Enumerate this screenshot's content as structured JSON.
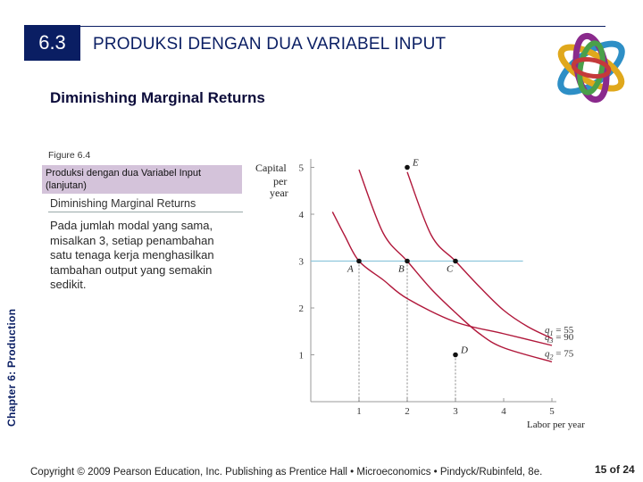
{
  "header": {
    "section_number": "6.3",
    "title": "PRODUKSI DENGAN DUA VARIABEL INPUT"
  },
  "subtitle": "Diminishing Marginal Returns",
  "side_label": "Chapter 6:  Production",
  "figure": {
    "number_label": "Figure 6.4",
    "caption": "Produksi dengan dua Variabel Input (lanjutan)",
    "heading": "Diminishing Marginal Returns",
    "body": "Pada jumlah modal yang sama, misalkan 3, setiap penambahan satu tenaga kerja menghasilkan tambahan output yang semakin sedikit."
  },
  "chart_data": {
    "type": "line",
    "ylabel_lines": [
      "Capital",
      "per",
      "year"
    ],
    "xlabel": "Labor per year",
    "x_ticks": [
      "1",
      "2",
      "3",
      "4",
      "5"
    ],
    "y_ticks": [
      "1",
      "2",
      "3",
      "4",
      "5"
    ],
    "xlim": [
      0,
      5
    ],
    "ylim": [
      0,
      5.2
    ],
    "series": [
      {
        "name": "q3 = 90",
        "label_main": "q",
        "label_sub": "3",
        "label_value": "= 90",
        "points": [
          [
            0.45,
            4.05
          ],
          [
            0.7,
            3.55
          ],
          [
            1,
            3
          ],
          [
            1.5,
            2.6
          ],
          [
            2,
            2.2
          ],
          [
            3,
            1.7
          ],
          [
            4,
            1.45
          ],
          [
            5,
            1.2
          ]
        ]
      },
      {
        "name": "q2 = 75",
        "label_main": "q",
        "label_sub": "2",
        "label_value": "= 75",
        "points": [
          [
            1,
            4.95
          ],
          [
            1.5,
            3.6
          ],
          [
            2,
            3
          ],
          [
            2.5,
            2.4
          ],
          [
            3,
            1.9
          ],
          [
            3.5,
            1.45
          ],
          [
            4,
            1.15
          ],
          [
            5,
            0.85
          ]
        ]
      },
      {
        "name": "q1 = 55",
        "label_main": "q",
        "label_sub": "1",
        "label_value": "= 55",
        "points": [
          [
            2,
            4.9
          ],
          [
            2.5,
            3.55
          ],
          [
            3,
            3
          ],
          [
            3.5,
            2.45
          ],
          [
            4,
            1.95
          ],
          [
            4.5,
            1.6
          ],
          [
            5,
            1.35
          ]
        ]
      }
    ],
    "points": [
      {
        "label": "A",
        "x": 1,
        "y": 3
      },
      {
        "label": "B",
        "x": 2,
        "y": 3
      },
      {
        "label": "C",
        "x": 3,
        "y": 3
      },
      {
        "label": "D",
        "x": 3,
        "y": 1
      },
      {
        "label": "E",
        "x": 2,
        "y": 5
      }
    ],
    "reference_line_y": 3,
    "colors": {
      "curve": "#b0173a",
      "reference": "#8ec6dc",
      "axis": "#999999",
      "point": "#111111"
    }
  },
  "footer": {
    "copyright": "Copyright © 2009 Pearson Education, Inc. Publishing as Prentice Hall • Microeconomics • Pindyck/Rubinfeld, 8e.",
    "page": "15 of 24"
  },
  "colors": {
    "accent": "#0a1e63",
    "caption_bg": "#d4c3da"
  }
}
